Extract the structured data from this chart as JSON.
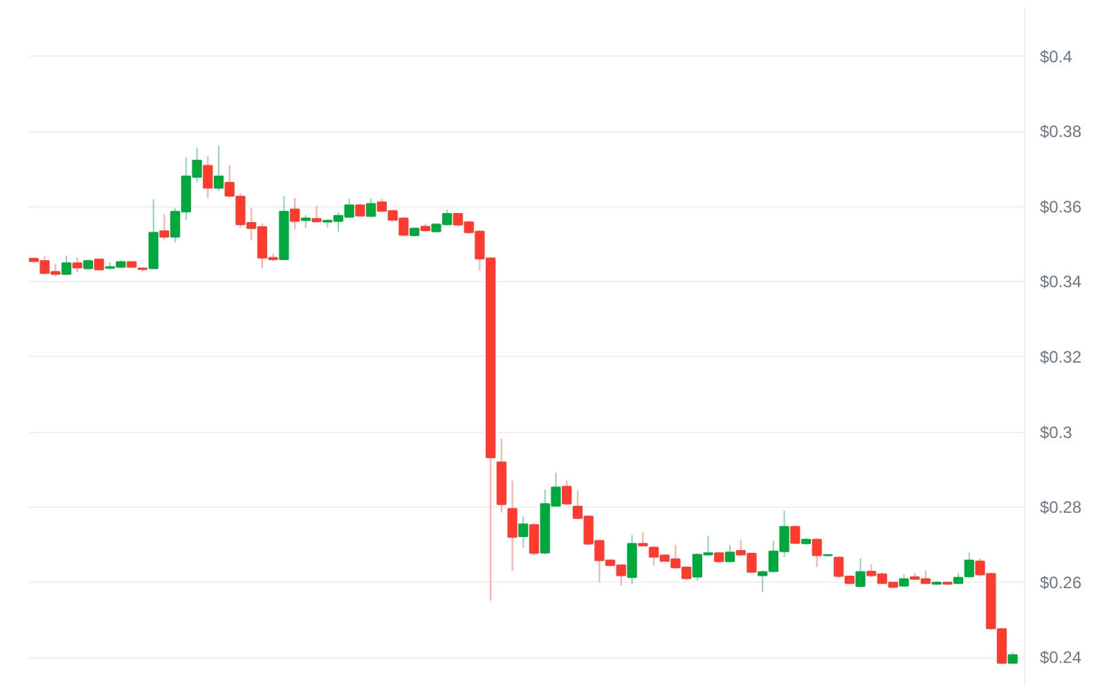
{
  "chart_data": {
    "type": "candlestick",
    "categories": [
      null,
      null,
      null,
      null,
      null,
      null,
      null,
      null,
      null,
      null,
      null,
      null,
      null,
      null,
      null,
      null,
      null,
      null,
      null,
      null,
      null,
      null,
      null,
      null,
      null,
      null,
      null,
      null,
      null,
      null,
      null,
      null,
      null,
      null,
      null,
      null,
      null,
      null,
      null,
      null,
      null,
      null,
      null,
      null,
      null,
      null,
      null,
      null,
      null,
      null,
      null,
      null,
      null,
      null,
      null,
      null,
      null,
      null,
      null,
      null,
      null,
      null,
      null,
      null,
      null,
      null,
      null,
      null,
      null,
      null,
      null,
      null,
      null,
      null,
      null,
      null,
      null,
      null,
      null,
      null,
      null,
      null,
      null,
      null,
      null,
      null,
      null,
      null,
      null,
      null,
      null
    ],
    "ohlc": [
      [
        0.3462,
        0.3465,
        0.345,
        0.3455
      ],
      [
        0.3456,
        0.3469,
        0.342,
        0.3423
      ],
      [
        0.3427,
        0.3448,
        0.3415,
        0.3421
      ],
      [
        0.3421,
        0.3469,
        0.342,
        0.345
      ],
      [
        0.345,
        0.3465,
        0.3425,
        0.3438
      ],
      [
        0.3436,
        0.346,
        0.3432,
        0.3456
      ],
      [
        0.346,
        0.3462,
        0.343,
        0.3433
      ],
      [
        0.3437,
        0.3452,
        0.3432,
        0.344
      ],
      [
        0.344,
        0.3458,
        0.3438,
        0.3453
      ],
      [
        0.3453,
        0.3455,
        0.3438,
        0.344
      ],
      [
        0.3436,
        0.3438,
        0.3428,
        0.3434
      ],
      [
        0.3436,
        0.362,
        0.3434,
        0.3531
      ],
      [
        0.3535,
        0.358,
        0.3512,
        0.352
      ],
      [
        0.352,
        0.3597,
        0.3505,
        0.3587
      ],
      [
        0.3587,
        0.3731,
        0.3565,
        0.3681
      ],
      [
        0.3679,
        0.3757,
        0.3665,
        0.3723
      ],
      [
        0.3709,
        0.3735,
        0.3623,
        0.365
      ],
      [
        0.365,
        0.3762,
        0.3642,
        0.3681
      ],
      [
        0.3664,
        0.371,
        0.3625,
        0.3629
      ],
      [
        0.3627,
        0.3635,
        0.3545,
        0.3553
      ],
      [
        0.3557,
        0.3596,
        0.3511,
        0.3543
      ],
      [
        0.3546,
        0.3555,
        0.3437,
        0.3464
      ],
      [
        0.3464,
        0.3475,
        0.3455,
        0.346
      ],
      [
        0.346,
        0.3629,
        0.3458,
        0.3587
      ],
      [
        0.3593,
        0.3623,
        0.354,
        0.3562
      ],
      [
        0.3564,
        0.3578,
        0.3544,
        0.3569
      ],
      [
        0.3568,
        0.3602,
        0.3558,
        0.3561
      ],
      [
        0.356,
        0.3566,
        0.3545,
        0.3563
      ],
      [
        0.3562,
        0.3585,
        0.3534,
        0.3576
      ],
      [
        0.3573,
        0.3621,
        0.357,
        0.3604
      ],
      [
        0.3604,
        0.3608,
        0.3573,
        0.3576
      ],
      [
        0.3575,
        0.3623,
        0.3572,
        0.3608
      ],
      [
        0.3612,
        0.3621,
        0.3586,
        0.3589
      ],
      [
        0.3589,
        0.3592,
        0.356,
        0.3565
      ],
      [
        0.3569,
        0.3572,
        0.352,
        0.3525
      ],
      [
        0.3524,
        0.3545,
        0.352,
        0.3542
      ],
      [
        0.3547,
        0.3555,
        0.3535,
        0.3537
      ],
      [
        0.3534,
        0.3556,
        0.3531,
        0.3553
      ],
      [
        0.3553,
        0.3592,
        0.355,
        0.3581
      ],
      [
        0.3581,
        0.3584,
        0.3548,
        0.3552
      ],
      [
        0.3559,
        0.3562,
        0.3528,
        0.3532
      ],
      [
        0.3534,
        0.3538,
        0.343,
        0.3462
      ],
      [
        0.3463,
        0.3466,
        0.2551,
        0.2933
      ],
      [
        0.292,
        0.2982,
        0.2786,
        0.2808
      ],
      [
        0.2796,
        0.2871,
        0.2631,
        0.2721
      ],
      [
        0.2723,
        0.2775,
        0.2693,
        0.2755
      ],
      [
        0.2753,
        0.2758,
        0.2672,
        0.2678
      ],
      [
        0.2679,
        0.2847,
        0.2675,
        0.2809
      ],
      [
        0.2804,
        0.2892,
        0.2801,
        0.2853
      ],
      [
        0.2855,
        0.2871,
        0.2806,
        0.281
      ],
      [
        0.2802,
        0.2845,
        0.2768,
        0.2771
      ],
      [
        0.2776,
        0.2779,
        0.2698,
        0.2703
      ],
      [
        0.2711,
        0.2714,
        0.2601,
        0.2659
      ],
      [
        0.2659,
        0.2662,
        0.2642,
        0.2646
      ],
      [
        0.2646,
        0.2649,
        0.2591,
        0.2619
      ],
      [
        0.2614,
        0.2727,
        0.2596,
        0.2703
      ],
      [
        0.2703,
        0.2733,
        0.2696,
        0.2698
      ],
      [
        0.2693,
        0.2696,
        0.2645,
        0.2668
      ],
      [
        0.2672,
        0.2676,
        0.2655,
        0.2657
      ],
      [
        0.2662,
        0.27,
        0.2636,
        0.264
      ],
      [
        0.264,
        0.2643,
        0.2606,
        0.2611
      ],
      [
        0.2615,
        0.2678,
        0.2605,
        0.2674
      ],
      [
        0.2674,
        0.2724,
        0.2671,
        0.2678
      ],
      [
        0.2678,
        0.2681,
        0.2652,
        0.2656
      ],
      [
        0.2656,
        0.27,
        0.2653,
        0.268
      ],
      [
        0.2684,
        0.2714,
        0.2671,
        0.2674
      ],
      [
        0.2677,
        0.268,
        0.2625,
        0.2628
      ],
      [
        0.2619,
        0.2632,
        0.2574,
        0.2628
      ],
      [
        0.263,
        0.2711,
        0.2627,
        0.2683
      ],
      [
        0.2683,
        0.2791,
        0.2668,
        0.2748
      ],
      [
        0.2748,
        0.2752,
        0.2702,
        0.2705
      ],
      [
        0.2704,
        0.2718,
        0.27,
        0.2714
      ],
      [
        0.2714,
        0.2717,
        0.2641,
        0.2672
      ],
      [
        0.2672,
        0.2676,
        0.2668,
        0.2673
      ],
      [
        0.2666,
        0.2669,
        0.2612,
        0.2617
      ],
      [
        0.2616,
        0.2619,
        0.2594,
        0.2598
      ],
      [
        0.259,
        0.2664,
        0.2586,
        0.2628
      ],
      [
        0.2629,
        0.2648,
        0.2614,
        0.2619
      ],
      [
        0.2622,
        0.2627,
        0.2595,
        0.2598
      ],
      [
        0.26,
        0.2603,
        0.2584,
        0.2588
      ],
      [
        0.2591,
        0.2622,
        0.2588,
        0.2609
      ],
      [
        0.2614,
        0.2625,
        0.2606,
        0.2609
      ],
      [
        0.2609,
        0.2632,
        0.2595,
        0.2598
      ],
      [
        0.2596,
        0.2604,
        0.2593,
        0.26
      ],
      [
        0.26,
        0.2603,
        0.2593,
        0.2596
      ],
      [
        0.2598,
        0.2625,
        0.2595,
        0.2613
      ],
      [
        0.2616,
        0.268,
        0.2612,
        0.2659
      ],
      [
        0.2656,
        0.2664,
        0.2616,
        0.2621
      ],
      [
        0.2623,
        0.2626,
        0.2474,
        0.2478
      ],
      [
        0.2476,
        0.2479,
        0.2382,
        0.2386
      ],
      [
        0.2386,
        0.2414,
        0.2383,
        0.2407
      ]
    ],
    "colors": [
      "#ff3b30",
      "#ff3b30",
      "#ff3b30",
      "#00a83e",
      "#ff3b30",
      "#00a83e",
      "#ff3b30",
      "#00a83e",
      "#00a83e",
      "#ff3b30",
      "#ff3b30",
      "#00a83e",
      "#ff3b30",
      "#00a83e",
      "#00a83e",
      "#00a83e",
      "#ff3b30",
      "#00a83e",
      "#ff3b30",
      "#ff3b30",
      "#ff3b30",
      "#ff3b30",
      "#ff3b30",
      "#00a83e",
      "#ff3b30",
      "#00a83e",
      "#ff3b30",
      "#00a83e",
      "#00a83e",
      "#00a83e",
      "#ff3b30",
      "#00a83e",
      "#ff3b30",
      "#ff3b30",
      "#ff3b30",
      "#00a83e",
      "#ff3b30",
      "#00a83e",
      "#00a83e",
      "#ff3b30",
      "#ff3b30",
      "#ff3b30",
      "#ff3b30",
      "#ff3b30",
      "#ff3b30",
      "#00a83e",
      "#ff3b30",
      "#00a83e",
      "#00a83e",
      "#ff3b30",
      "#ff3b30",
      "#ff3b30",
      "#ff3b30",
      "#ff3b30",
      "#ff3b30",
      "#00a83e",
      "#ff3b30",
      "#ff3b30",
      "#ff3b30",
      "#ff3b30",
      "#ff3b30",
      "#00a83e",
      "#00a83e",
      "#ff3b30",
      "#00a83e",
      "#ff3b30",
      "#ff3b30",
      "#00a83e",
      "#00a83e",
      "#00a83e",
      "#ff3b30",
      "#00a83e",
      "#ff3b30",
      "#00a83e",
      "#ff3b30",
      "#ff3b30",
      "#00a83e",
      "#ff3b30",
      "#ff3b30",
      "#ff3b30",
      "#00a83e",
      "#ff3b30",
      "#ff3b30",
      "#00a83e",
      "#ff3b30",
      "#00a83e",
      "#00a83e",
      "#ff3b30",
      "#ff3b30",
      "#ff3b30",
      "#00a83e"
    ],
    "ylim": [
      0.2325,
      0.413
    ],
    "yticks": [
      {
        "value": 0.24,
        "label": "$0.24"
      },
      {
        "value": 0.26,
        "label": "$0.26"
      },
      {
        "value": 0.28,
        "label": "$0.28"
      },
      {
        "value": 0.3,
        "label": "$0.3"
      },
      {
        "value": 0.32,
        "label": "$0.32"
      },
      {
        "value": 0.34,
        "label": "$0.34"
      },
      {
        "value": 0.36,
        "label": "$0.36"
      },
      {
        "value": 0.38,
        "label": "$0.38"
      },
      {
        "value": 0.4,
        "label": "$0.4"
      }
    ],
    "grid": "y",
    "tick_labels": "y"
  }
}
